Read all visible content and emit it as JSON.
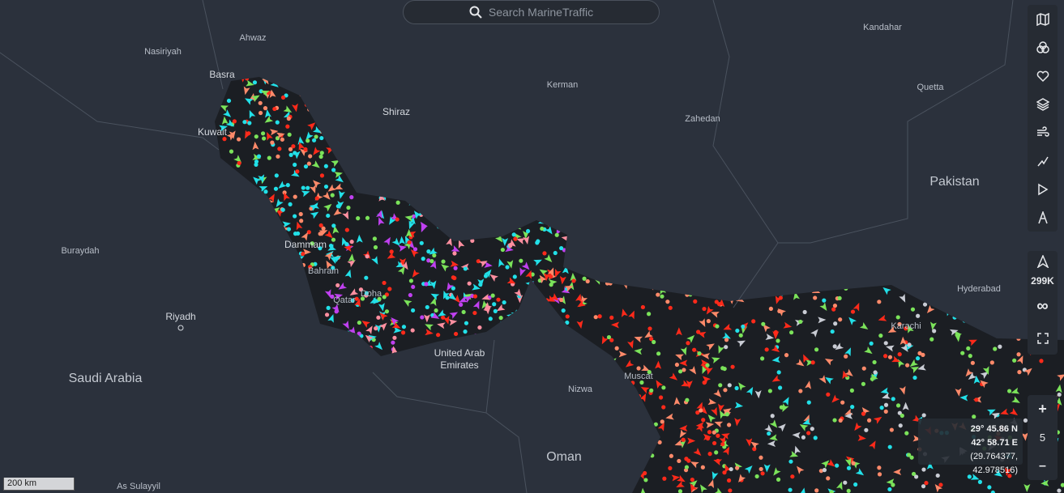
{
  "search": {
    "placeholder": "Search MarineTraffic"
  },
  "places": [
    "Ahwaz",
    "Nasiriyah",
    "Basra",
    "Kuwait",
    "Shiraz",
    "Kerman",
    "Zahedan",
    "Kandahar",
    "Quetta",
    "Pakistan",
    "Hyderabad",
    "Buraydah",
    "Riyadh",
    "Saudi Arabia",
    "Dammam",
    "Bahrain",
    "Qatar",
    "Doha",
    "United Arab",
    "Emirates",
    "Nizwa",
    "Muscat",
    "Oman",
    "Karachi",
    "As Sulayyil"
  ],
  "toolbar": {
    "vessel_count": "299K",
    "infinity": "∞",
    "zoom_in": "+",
    "zoom_level": "5",
    "zoom_out": "–"
  },
  "coordinates": {
    "lat": "29° 45.86 N",
    "lon": "42° 58.71 E",
    "decimal": "(29.764377, 42.978516)"
  },
  "scale": "200 km"
}
